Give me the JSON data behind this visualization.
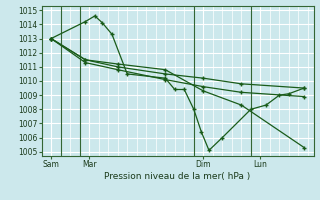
{
  "bg_color": "#cce8ec",
  "grid_color": "#ffffff",
  "line_color": "#1a5c1a",
  "xlabel": "Pression niveau de la mer( hPa )",
  "yticks": [
    1005,
    1006,
    1007,
    1008,
    1009,
    1010,
    1011,
    1012,
    1013,
    1014,
    1015
  ],
  "xtick_labels": [
    "Sam",
    "Mar",
    "Dim",
    "Lun"
  ],
  "xtick_positions": [
    0.5,
    2.5,
    8.5,
    11.5
  ],
  "vline_positions": [
    1.0,
    2.0,
    8.0,
    11.0
  ],
  "series": [
    {
      "x": [
        0.5,
        2.3,
        2.8,
        3.2,
        3.7,
        4.5,
        6.5,
        7.0,
        7.5,
        8.0,
        8.4,
        8.8,
        9.5,
        11.0,
        11.8,
        12.5,
        13.0,
        13.8
      ],
      "y": [
        1013.0,
        1014.2,
        1014.6,
        1014.1,
        1013.3,
        1010.5,
        1010.2,
        1009.4,
        1009.4,
        1008.0,
        1006.4,
        1005.1,
        1006.0,
        1008.0,
        1008.3,
        1009.0,
        1009.1,
        1009.5
      ]
    },
    {
      "x": [
        0.5,
        2.3,
        4.0,
        6.5,
        8.5,
        10.5,
        13.8
      ],
      "y": [
        1013.0,
        1011.5,
        1011.0,
        1010.5,
        1010.2,
        1009.8,
        1009.5
      ]
    },
    {
      "x": [
        0.5,
        2.3,
        4.0,
        6.5,
        8.5,
        10.5,
        13.8
      ],
      "y": [
        1013.0,
        1011.3,
        1010.8,
        1010.1,
        1009.6,
        1009.2,
        1008.9
      ]
    },
    {
      "x": [
        0.5,
        2.3,
        4.0,
        6.5,
        8.5,
        10.5,
        13.8
      ],
      "y": [
        1013.0,
        1011.5,
        1011.2,
        1010.8,
        1009.3,
        1008.3,
        1005.3
      ]
    }
  ],
  "xlim": [
    0,
    14.3
  ],
  "ylim": [
    1004.7,
    1015.3
  ]
}
